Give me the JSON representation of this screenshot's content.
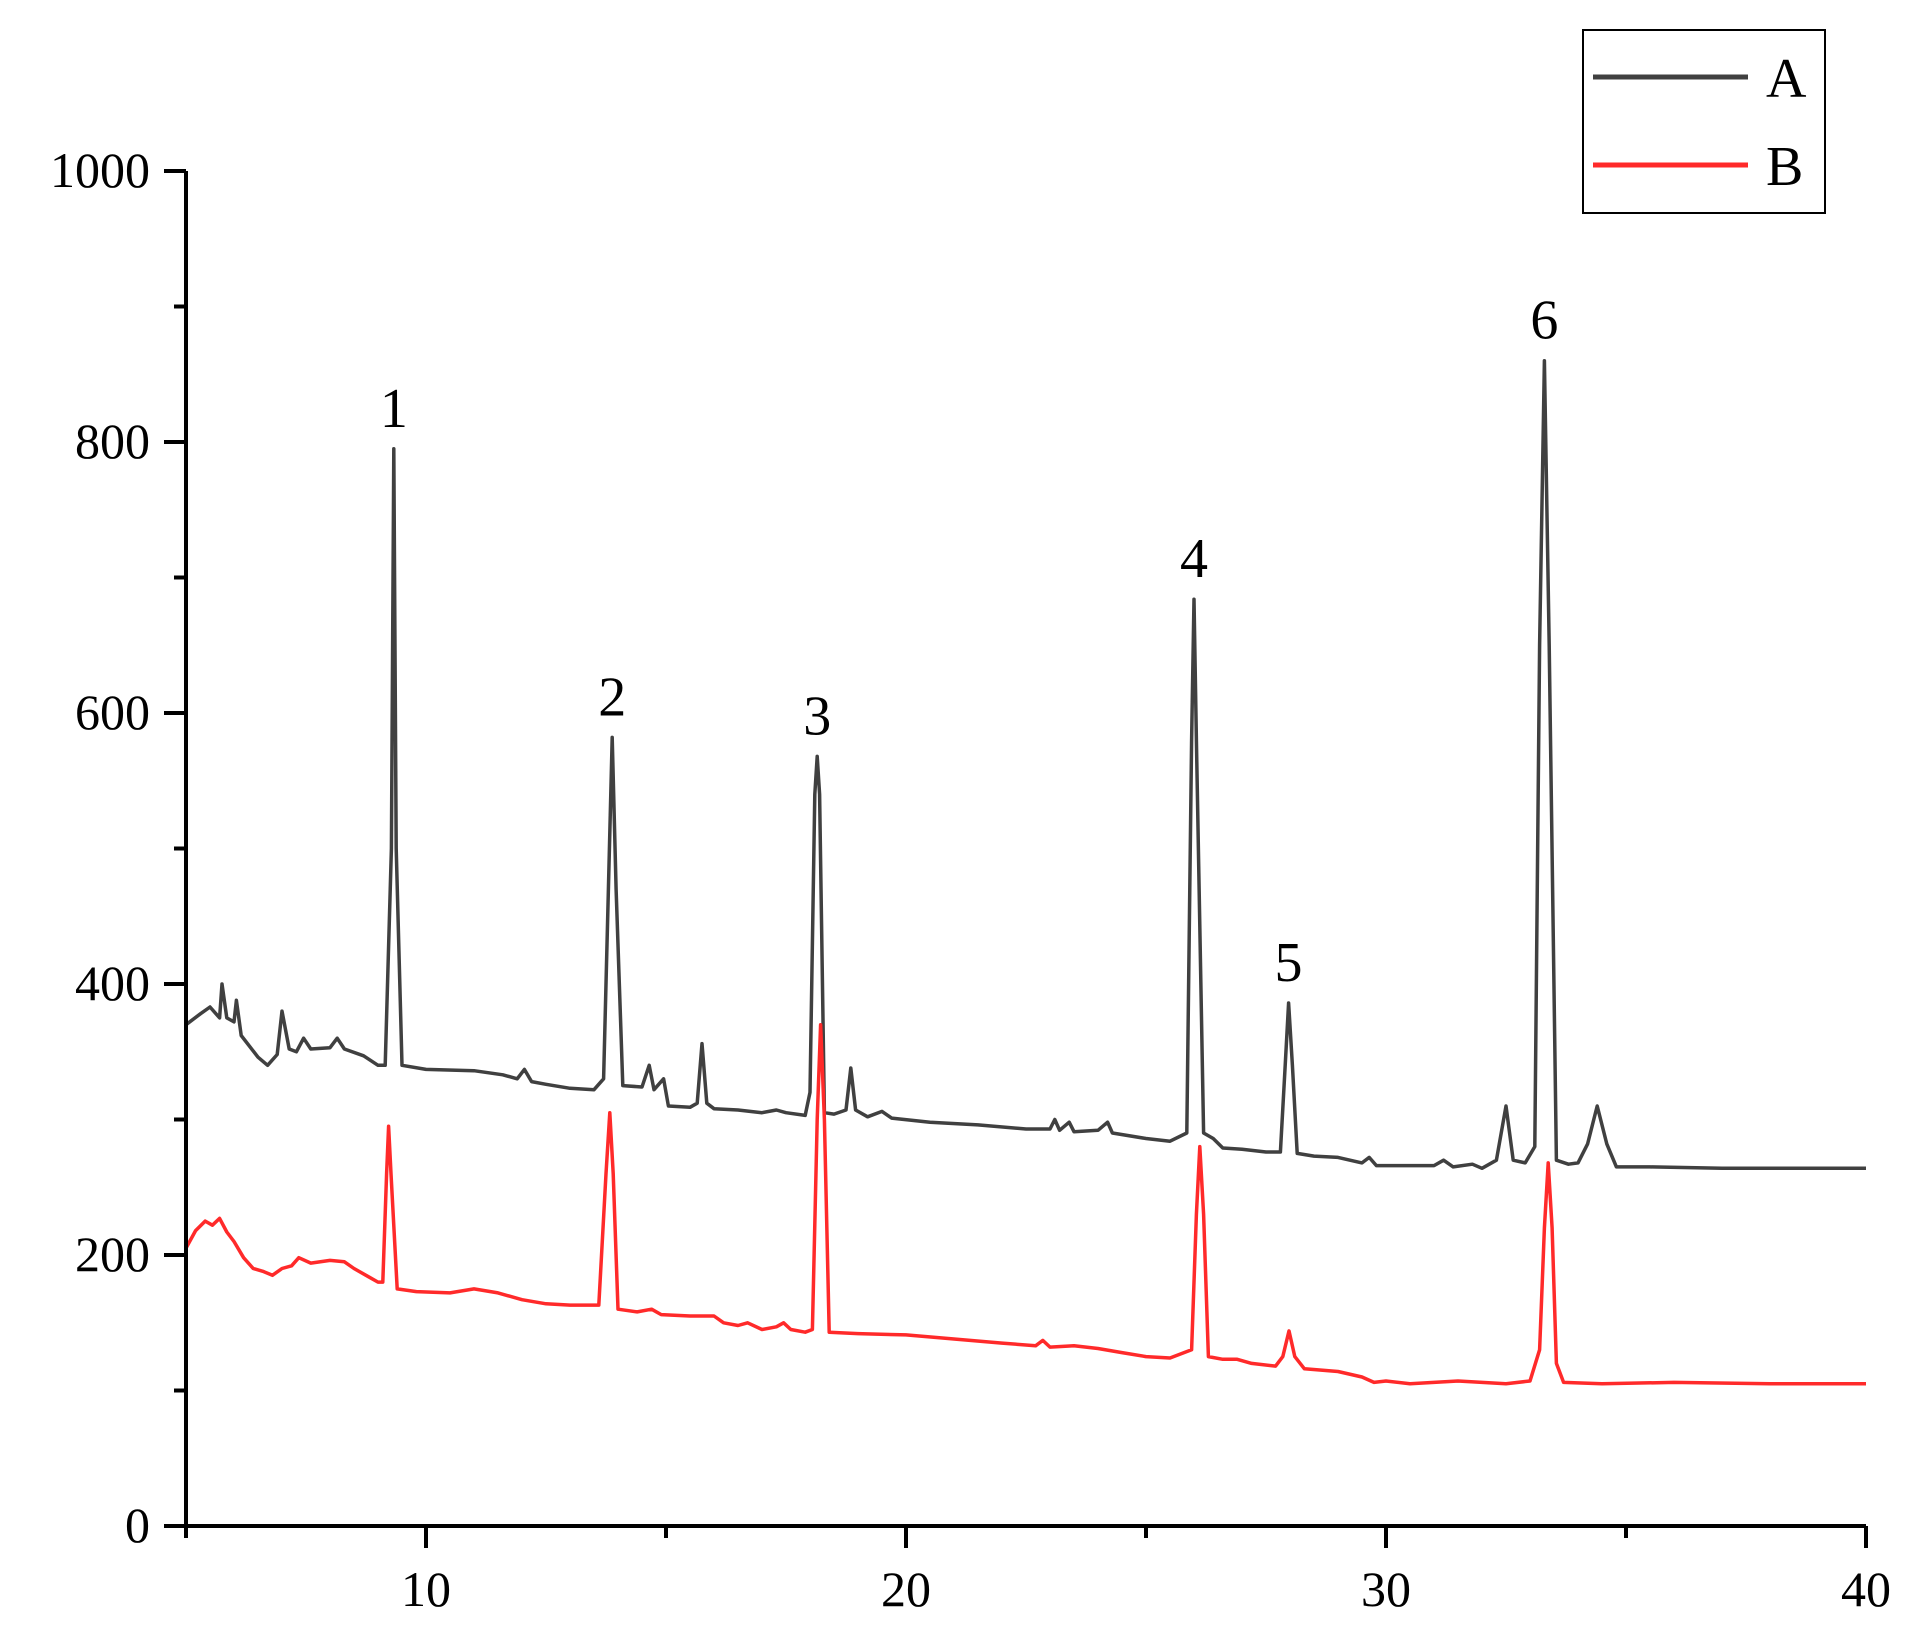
{
  "chart_data": {
    "type": "line",
    "title": "",
    "xlabel": "",
    "ylabel": "",
    "xlim": [
      5,
      40
    ],
    "ylim": [
      0,
      1000
    ],
    "x_ticks": [
      10,
      20,
      30,
      40
    ],
    "y_ticks": [
      0,
      200,
      400,
      600,
      800,
      1000
    ],
    "grid": false,
    "legend_position": "top-right",
    "series": [
      {
        "name": "A",
        "color": "#404040",
        "points": [
          [
            5.0,
            370
          ],
          [
            5.3,
            378
          ],
          [
            5.5,
            383
          ],
          [
            5.7,
            375
          ],
          [
            5.75,
            400
          ],
          [
            5.85,
            375
          ],
          [
            6.0,
            372
          ],
          [
            6.05,
            388
          ],
          [
            6.15,
            362
          ],
          [
            6.5,
            346
          ],
          [
            6.7,
            340
          ],
          [
            6.9,
            348
          ],
          [
            7.0,
            380
          ],
          [
            7.15,
            352
          ],
          [
            7.3,
            350
          ],
          [
            7.45,
            360
          ],
          [
            7.6,
            352
          ],
          [
            8.0,
            353
          ],
          [
            8.15,
            360
          ],
          [
            8.3,
            352
          ],
          [
            8.7,
            347
          ],
          [
            9.0,
            340
          ],
          [
            9.15,
            340
          ],
          [
            9.28,
            500
          ],
          [
            9.33,
            795
          ],
          [
            9.38,
            500
          ],
          [
            9.5,
            340
          ],
          [
            10.0,
            337
          ],
          [
            11.0,
            336
          ],
          [
            11.6,
            333
          ],
          [
            11.9,
            330
          ],
          [
            12.05,
            337
          ],
          [
            12.2,
            328
          ],
          [
            12.5,
            326
          ],
          [
            13.0,
            323
          ],
          [
            13.5,
            322
          ],
          [
            13.7,
            330
          ],
          [
            13.8,
            470
          ],
          [
            13.88,
            582
          ],
          [
            13.96,
            470
          ],
          [
            14.1,
            325
          ],
          [
            14.5,
            324
          ],
          [
            14.65,
            340
          ],
          [
            14.75,
            322
          ],
          [
            14.95,
            330
          ],
          [
            15.05,
            310
          ],
          [
            15.5,
            309
          ],
          [
            15.65,
            312
          ],
          [
            15.75,
            356
          ],
          [
            15.85,
            312
          ],
          [
            16.0,
            308
          ],
          [
            16.5,
            307
          ],
          [
            17.0,
            305
          ],
          [
            17.3,
            307
          ],
          [
            17.5,
            305
          ],
          [
            17.9,
            303
          ],
          [
            18.0,
            320
          ],
          [
            18.1,
            540
          ],
          [
            18.15,
            568
          ],
          [
            18.2,
            540
          ],
          [
            18.3,
            305
          ],
          [
            18.5,
            304
          ],
          [
            18.75,
            307
          ],
          [
            18.85,
            338
          ],
          [
            18.95,
            307
          ],
          [
            19.2,
            302
          ],
          [
            19.5,
            306
          ],
          [
            19.7,
            301
          ],
          [
            20.5,
            298
          ],
          [
            21.5,
            296
          ],
          [
            22.5,
            293
          ],
          [
            23.0,
            293
          ],
          [
            23.1,
            300
          ],
          [
            23.2,
            292
          ],
          [
            23.4,
            298
          ],
          [
            23.5,
            291
          ],
          [
            24.0,
            292
          ],
          [
            24.2,
            298
          ],
          [
            24.3,
            290
          ],
          [
            25.0,
            286
          ],
          [
            25.5,
            284
          ],
          [
            25.85,
            290
          ],
          [
            25.95,
            580
          ],
          [
            26.0,
            684
          ],
          [
            26.05,
            580
          ],
          [
            26.2,
            290
          ],
          [
            26.4,
            286
          ],
          [
            26.6,
            279
          ],
          [
            27.0,
            278
          ],
          [
            27.5,
            276
          ],
          [
            27.8,
            276
          ],
          [
            27.9,
            340
          ],
          [
            27.97,
            386
          ],
          [
            28.05,
            340
          ],
          [
            28.15,
            275
          ],
          [
            28.5,
            273
          ],
          [
            29.0,
            272
          ],
          [
            29.5,
            268
          ],
          [
            29.65,
            272
          ],
          [
            29.8,
            266
          ],
          [
            30.5,
            266
          ],
          [
            31.0,
            266
          ],
          [
            31.2,
            270
          ],
          [
            31.4,
            265
          ],
          [
            31.8,
            267
          ],
          [
            32.0,
            264
          ],
          [
            32.3,
            270
          ],
          [
            32.5,
            310
          ],
          [
            32.65,
            270
          ],
          [
            32.9,
            268
          ],
          [
            33.1,
            280
          ],
          [
            33.2,
            650
          ],
          [
            33.3,
            860
          ],
          [
            33.4,
            650
          ],
          [
            33.55,
            270
          ],
          [
            33.8,
            267
          ],
          [
            34.0,
            268
          ],
          [
            34.2,
            282
          ],
          [
            34.4,
            310
          ],
          [
            34.6,
            282
          ],
          [
            34.8,
            265
          ],
          [
            35.5,
            265
          ],
          [
            37.0,
            264
          ],
          [
            40.0,
            264
          ]
        ]
      },
      {
        "name": "B",
        "color": "#ff2a2a",
        "points": [
          [
            5.0,
            205
          ],
          [
            5.2,
            218
          ],
          [
            5.4,
            225
          ],
          [
            5.55,
            222
          ],
          [
            5.7,
            227
          ],
          [
            5.85,
            217
          ],
          [
            6.0,
            210
          ],
          [
            6.2,
            198
          ],
          [
            6.4,
            190
          ],
          [
            6.6,
            188
          ],
          [
            6.8,
            185
          ],
          [
            7.0,
            190
          ],
          [
            7.2,
            192
          ],
          [
            7.35,
            198
          ],
          [
            7.6,
            194
          ],
          [
            8.0,
            196
          ],
          [
            8.3,
            195
          ],
          [
            8.5,
            190
          ],
          [
            8.8,
            184
          ],
          [
            9.0,
            180
          ],
          [
            9.1,
            180
          ],
          [
            9.18,
            260
          ],
          [
            9.22,
            295
          ],
          [
            9.27,
            260
          ],
          [
            9.4,
            175
          ],
          [
            9.8,
            173
          ],
          [
            10.5,
            172
          ],
          [
            11.0,
            175
          ],
          [
            11.5,
            172
          ],
          [
            12.0,
            167
          ],
          [
            12.5,
            164
          ],
          [
            13.0,
            163
          ],
          [
            13.6,
            163
          ],
          [
            13.75,
            260
          ],
          [
            13.83,
            305
          ],
          [
            13.9,
            260
          ],
          [
            14.0,
            160
          ],
          [
            14.4,
            158
          ],
          [
            14.7,
            160
          ],
          [
            14.9,
            156
          ],
          [
            15.5,
            155
          ],
          [
            16.0,
            155
          ],
          [
            16.2,
            150
          ],
          [
            16.5,
            148
          ],
          [
            16.7,
            150
          ],
          [
            17.0,
            145
          ],
          [
            17.3,
            147
          ],
          [
            17.45,
            150
          ],
          [
            17.6,
            145
          ],
          [
            17.9,
            143
          ],
          [
            18.05,
            145
          ],
          [
            18.15,
            300
          ],
          [
            18.22,
            370
          ],
          [
            18.3,
            300
          ],
          [
            18.4,
            143
          ],
          [
            19.0,
            142
          ],
          [
            20.0,
            141
          ],
          [
            21.0,
            138
          ],
          [
            22.0,
            135
          ],
          [
            22.7,
            133
          ],
          [
            22.85,
            137
          ],
          [
            23.0,
            132
          ],
          [
            23.5,
            133
          ],
          [
            24.0,
            131
          ],
          [
            24.5,
            128
          ],
          [
            25.0,
            125
          ],
          [
            25.5,
            124
          ],
          [
            25.95,
            130
          ],
          [
            26.05,
            230
          ],
          [
            26.12,
            280
          ],
          [
            26.2,
            230
          ],
          [
            26.3,
            125
          ],
          [
            26.6,
            123
          ],
          [
            26.9,
            123
          ],
          [
            27.2,
            120
          ],
          [
            27.7,
            118
          ],
          [
            27.85,
            125
          ],
          [
            27.98,
            144
          ],
          [
            28.1,
            125
          ],
          [
            28.3,
            116
          ],
          [
            29.0,
            114
          ],
          [
            29.5,
            110
          ],
          [
            29.75,
            106
          ],
          [
            30.0,
            107
          ],
          [
            30.5,
            105
          ],
          [
            31.0,
            106
          ],
          [
            31.5,
            107
          ],
          [
            32.0,
            106
          ],
          [
            32.5,
            105
          ],
          [
            33.0,
            107
          ],
          [
            33.2,
            130
          ],
          [
            33.3,
            220
          ],
          [
            33.38,
            268
          ],
          [
            33.46,
            220
          ],
          [
            33.55,
            120
          ],
          [
            33.7,
            106
          ],
          [
            34.5,
            105
          ],
          [
            36.0,
            106
          ],
          [
            38.0,
            105
          ],
          [
            40.0,
            105
          ]
        ]
      }
    ],
    "annotations": [
      {
        "text": "1",
        "x": 9.33,
        "y": 795
      },
      {
        "text": "2",
        "x": 13.88,
        "y": 582
      },
      {
        "text": "3",
        "x": 18.15,
        "y": 568
      },
      {
        "text": "4",
        "x": 26.0,
        "y": 684
      },
      {
        "text": "5",
        "x": 27.97,
        "y": 386
      },
      {
        "text": "6",
        "x": 33.3,
        "y": 860
      }
    ]
  }
}
